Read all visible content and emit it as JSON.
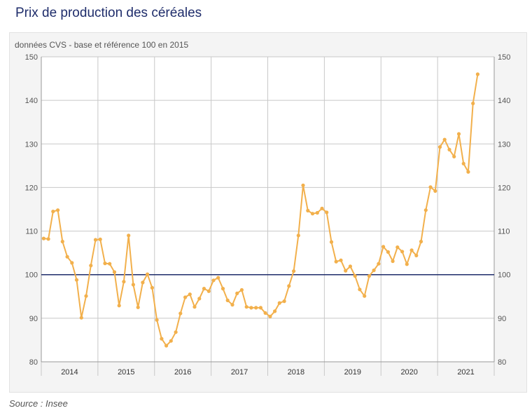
{
  "header": {
    "title": "Prix de production des céréales"
  },
  "footer": {
    "source": "Source : Insee"
  },
  "chart_data": {
    "type": "line",
    "title": "Prix de production des céréales",
    "subtitle": "données CVS - base et référence 100 en 2015",
    "years": [
      "2014",
      "2015",
      "2016",
      "2017",
      "2018",
      "2019",
      "2020",
      "2021"
    ],
    "ylim": [
      80,
      150
    ],
    "yticks": [
      80,
      90,
      100,
      110,
      120,
      130,
      140,
      150
    ],
    "reference_line": 100,
    "grid": true,
    "colors": {
      "series": "#f2b04c",
      "reference": "#1f2d6b",
      "grid": "#c8c8c8"
    },
    "series": [
      {
        "name": "",
        "start": "2014-01",
        "frequency": "monthly",
        "values": [
          108.3,
          108.2,
          114.5,
          114.8,
          107.6,
          104.1,
          102.7,
          98.8,
          90.1,
          95.1,
          102.1,
          108.0,
          108.1,
          102.6,
          102.5,
          100.6,
          92.9,
          98.4,
          109.0,
          97.7,
          92.5,
          98.2,
          100.1,
          97.0,
          89.6,
          85.3,
          83.7,
          84.8,
          86.8,
          91.1,
          94.8,
          95.5,
          92.6,
          94.5,
          96.8,
          96.2,
          98.7,
          99.3,
          96.8,
          94.1,
          93.1,
          95.7,
          96.5,
          92.6,
          92.4,
          92.4,
          92.4,
          91.2,
          90.4,
          91.6,
          93.5,
          93.9,
          97.4,
          100.8,
          109.0,
          120.5,
          114.7,
          114.0,
          114.2,
          115.2,
          114.3,
          107.5,
          103.0,
          103.3,
          100.9,
          101.9,
          99.7,
          96.6,
          95.1,
          99.7,
          101.0,
          102.5,
          106.4,
          105.2,
          103.1,
          106.3,
          105.3,
          102.4,
          105.6,
          104.4,
          107.6,
          114.8,
          120.1,
          119.2,
          129.3,
          131.0,
          128.7,
          127.1,
          132.3,
          125.5,
          123.6,
          139.3,
          146.0
        ]
      }
    ]
  }
}
